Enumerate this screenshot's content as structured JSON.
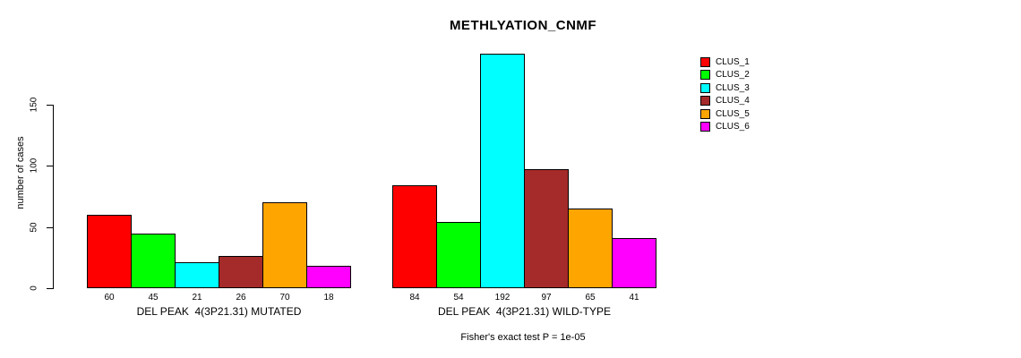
{
  "chart_data": {
    "type": "bar",
    "title": "METHLYATION_CNMF",
    "ylabel": "number of cases",
    "yticks": [
      0,
      50,
      100,
      150
    ],
    "ylim": [
      0,
      193
    ],
    "grid": false,
    "legend_position": "right",
    "colors": [
      "#FF0000",
      "#00FF00",
      "#00FFFF",
      "#A52A2A",
      "#FFA500",
      "#FF00FF"
    ],
    "legend": [
      {
        "label": "CLUS_1",
        "color": "#FF0000"
      },
      {
        "label": "CLUS_2",
        "color": "#00FF00"
      },
      {
        "label": "CLUS_3",
        "color": "#00FFFF"
      },
      {
        "label": "CLUS_4",
        "color": "#A52A2A"
      },
      {
        "label": "CLUS_5",
        "color": "#FFA500"
      },
      {
        "label": "CLUS_6",
        "color": "#FF00FF"
      }
    ],
    "groups": [
      {
        "label": "DEL PEAK  4(3P21.31) MUTATED",
        "values": [
          60,
          45,
          21,
          26,
          70,
          18
        ]
      },
      {
        "label": "DEL PEAK  4(3P21.31) WILD-TYPE",
        "values": [
          84,
          54,
          192,
          97,
          65,
          41
        ]
      }
    ],
    "footer": "Fisher's exact test P = 1e-05"
  }
}
